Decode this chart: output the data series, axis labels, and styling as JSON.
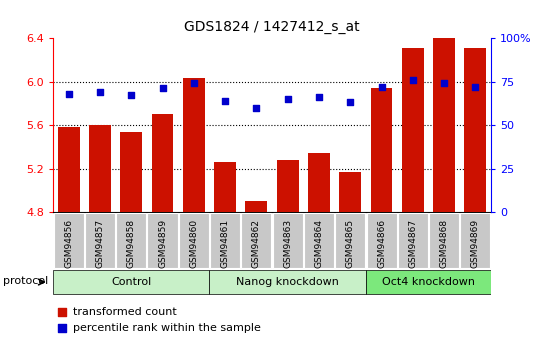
{
  "title": "GDS1824 / 1427412_s_at",
  "samples": [
    "GSM94856",
    "GSM94857",
    "GSM94858",
    "GSM94859",
    "GSM94860",
    "GSM94861",
    "GSM94862",
    "GSM94863",
    "GSM94864",
    "GSM94865",
    "GSM94866",
    "GSM94867",
    "GSM94868",
    "GSM94869"
  ],
  "transformed_count": [
    5.58,
    5.6,
    5.54,
    5.7,
    6.03,
    5.26,
    4.9,
    5.28,
    5.34,
    5.17,
    5.94,
    6.31,
    6.4,
    6.31
  ],
  "percentile_rank": [
    68,
    69,
    67,
    71,
    74,
    64,
    60,
    65,
    66,
    63,
    72,
    76,
    74,
    72
  ],
  "bar_color": "#cc1100",
  "dot_color": "#0000cc",
  "ylim_left": [
    4.8,
    6.4
  ],
  "ylim_right": [
    0,
    100
  ],
  "yticks_left": [
    4.8,
    5.2,
    5.6,
    6.0,
    6.4
  ],
  "yticks_right": [
    0,
    25,
    50,
    75,
    100
  ],
  "ytick_labels_right": [
    "0",
    "25",
    "50",
    "75",
    "100%"
  ],
  "grid_values": [
    5.2,
    5.6,
    6.0
  ],
  "legend_label_bar": "transformed count",
  "legend_label_dot": "percentile rank within the sample",
  "protocol_label": "protocol",
  "bar_bottom": 4.8,
  "group_starts": [
    -0.5,
    4.5,
    9.5
  ],
  "group_ends": [
    4.5,
    9.5,
    13.5
  ],
  "group_labels": [
    "Control",
    "Nanog knockdown",
    "Oct4 knockdown"
  ],
  "group_colors": [
    "#c8f0c8",
    "#c8f0c8",
    "#7ce87c"
  ],
  "cell_color": "#c8c8c8",
  "cell_edge_color": "#ffffff"
}
